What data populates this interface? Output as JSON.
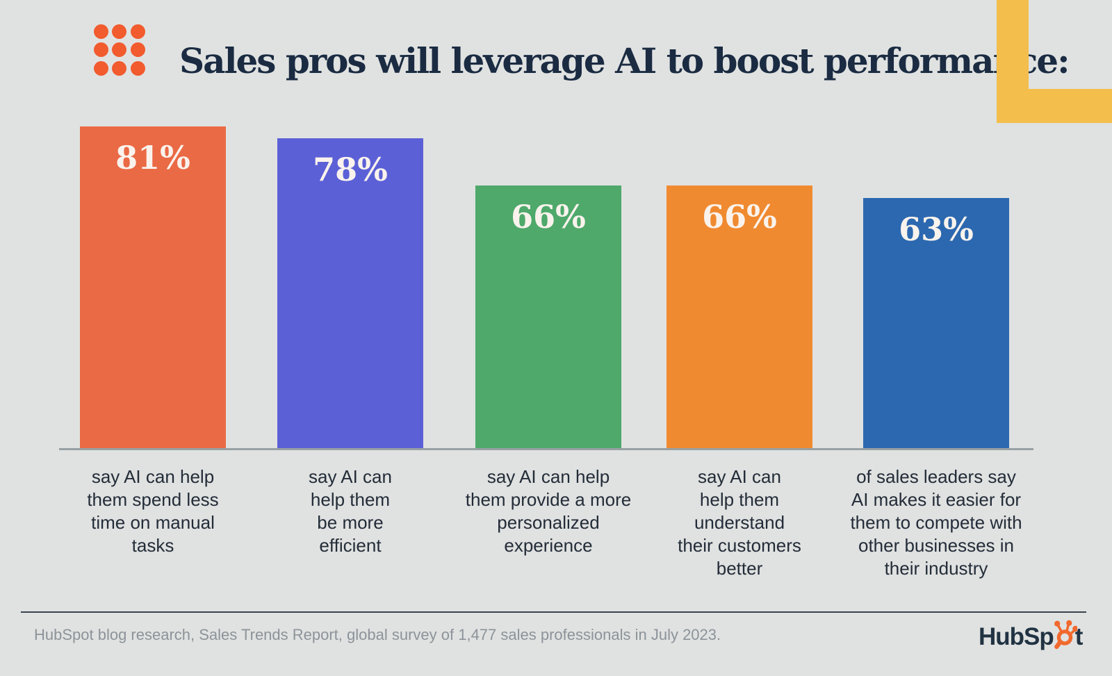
{
  "header": {
    "title": "Sales pros will leverage AI to boost performance:"
  },
  "chart_data": {
    "type": "bar",
    "title": "Sales pros will leverage AI to boost performance:",
    "categories": [
      "say AI can help them spend less time on manual tasks",
      "say AI can help them be more efficient",
      "say AI can help them provide a more personalized experience",
      "say AI can help them understand their customers better",
      "of sales leaders say AI makes it easier for them to compete with other businesses in their industry"
    ],
    "category_lines": [
      [
        "say AI can help",
        "them spend less",
        "time on manual",
        "tasks"
      ],
      [
        "say AI can",
        "help them",
        "be more",
        "efficient"
      ],
      [
        "say AI can help",
        "them provide a more",
        "personalized",
        "experience"
      ],
      [
        "say AI can",
        "help them",
        "understand",
        "their customers",
        "better"
      ],
      [
        "of sales leaders say",
        "AI makes it easier for",
        "them to compete with",
        "other businesses in",
        "their industry"
      ]
    ],
    "values": [
      81,
      78,
      66,
      66,
      63
    ],
    "value_labels": [
      "81%",
      "78%",
      "66%",
      "66%",
      "63%"
    ],
    "bar_colors": [
      "#EA6A45",
      "#5C60D6",
      "#4EA96B",
      "#F08A30",
      "#2C68B0"
    ],
    "value_label_color": "#FAF3ED",
    "xlabel": "",
    "ylabel": "",
    "ylim": [
      0,
      100
    ],
    "grid": false,
    "legend": false,
    "orientation": "vertical"
  },
  "footer": {
    "source": "HubSpot blog research, Sales Trends Report, global survey of 1,477 sales professionals in July 2023.",
    "logo": {
      "name": "HubSpot",
      "text_before_sprocket": "HubSp",
      "text_after_sprocket": "t"
    }
  },
  "decorations": {
    "background_color": "#E0E2E1",
    "dot_grid_color": "#F15B2E",
    "corner_accent_color": "#F3BE4B",
    "axis_line_color": "#98A0A3",
    "divider_color": "#39434D",
    "title_color": "#1A2B42",
    "caption_color": "#232C38",
    "source_text_color": "#8C9399",
    "logo_text_color": "#213343",
    "logo_sprocket_color": "#F2692E"
  }
}
